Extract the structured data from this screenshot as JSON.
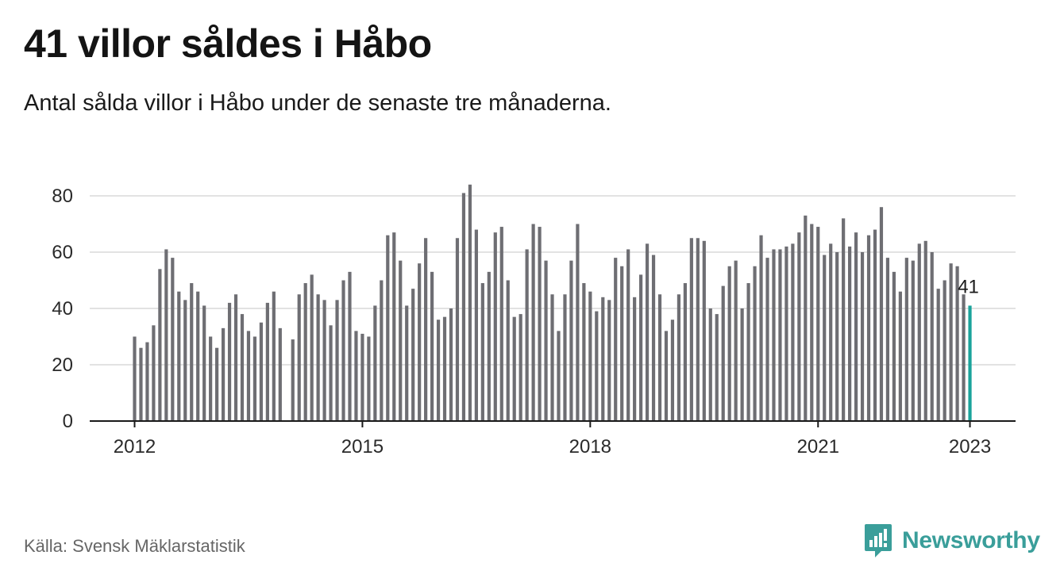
{
  "header": {
    "title": "41 villor såldes i Håbo",
    "subtitle": "Antal sålda villor i Håbo under de senaste tre månaderna."
  },
  "footer": {
    "source": "Källa: Svensk Mäklarstatistik",
    "brand": "Newsworthy",
    "brand_icon": "newsworthy-logo-icon"
  },
  "colors": {
    "bar": "#6e6e73",
    "highlight": "#1aa39b",
    "grid": "#d9d9d9",
    "axis": "#1a1a1a",
    "brand": "#3a9e9a"
  },
  "chart_data": {
    "type": "bar",
    "title": "41 villor såldes i Håbo",
    "subtitle": "Antal sålda villor i Håbo under de senaste tre månaderna.",
    "xlabel": "",
    "ylabel": "",
    "ylim": [
      0,
      90
    ],
    "yticks": [
      0,
      20,
      40,
      60,
      80
    ],
    "xticks": [
      "2012",
      "2015",
      "2018",
      "2021",
      "2023"
    ],
    "grid": true,
    "legend": "none",
    "start": "2012-01",
    "series": [
      {
        "values": [
          30,
          26,
          28,
          34,
          54,
          61,
          58,
          46,
          43,
          49,
          46,
          41,
          30,
          26,
          33,
          42,
          45,
          38,
          32,
          30,
          35,
          42,
          46,
          33,
          null,
          29,
          45,
          49,
          52,
          45,
          43,
          34,
          43,
          50,
          53,
          32,
          31,
          30,
          41,
          50,
          66,
          67,
          57,
          41,
          47,
          56,
          65,
          53,
          36,
          37,
          40,
          65,
          81,
          84,
          68,
          49,
          53,
          67,
          69,
          50,
          37,
          38,
          61,
          70,
          69,
          57,
          45,
          32,
          45,
          57,
          70,
          49,
          46,
          39,
          44,
          43,
          58,
          55,
          61,
          44,
          52,
          63,
          59,
          45,
          32,
          36,
          45,
          49,
          65,
          65,
          64,
          40,
          38,
          48,
          55,
          57,
          40,
          49,
          55,
          66,
          58,
          61,
          61,
          62,
          63,
          67,
          73,
          70,
          69,
          59,
          63,
          60,
          72,
          62,
          67,
          60,
          66,
          68,
          76,
          58,
          53,
          46,
          58,
          57,
          63,
          64,
          60,
          47,
          50,
          56,
          55,
          45,
          41
        ]
      }
    ],
    "annotations": [
      {
        "text": "41",
        "target": "last"
      }
    ]
  }
}
